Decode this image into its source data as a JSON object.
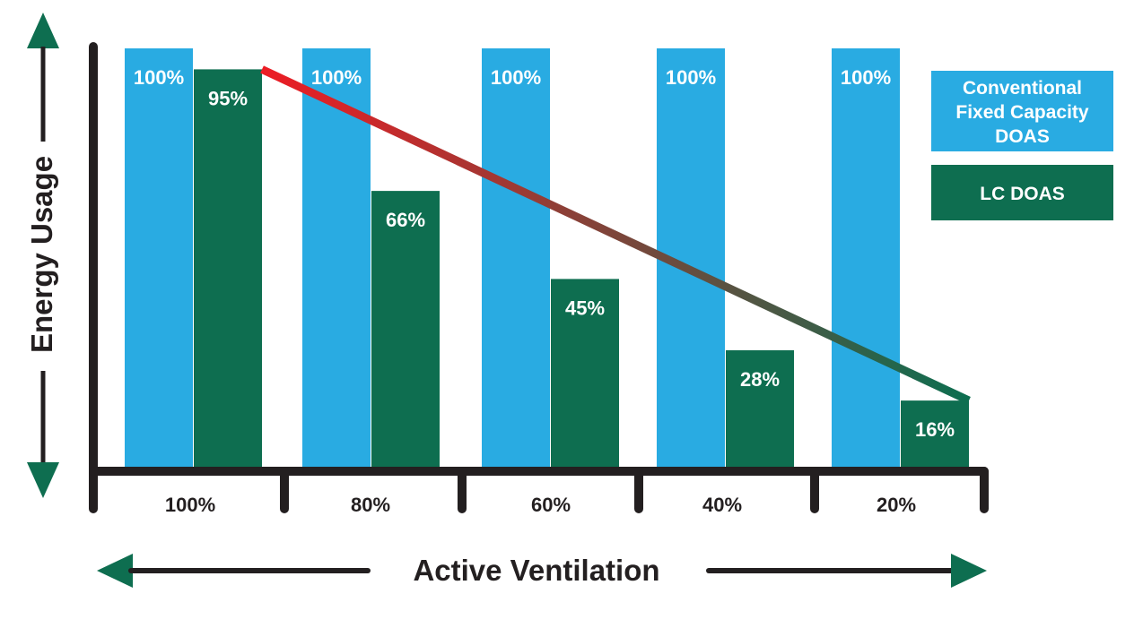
{
  "colors": {
    "conventional": "#29abe2",
    "lc": "#0e6e50",
    "axis": "#231f20",
    "arrow": "#0e6e50",
    "trend_start": "#ed1c24",
    "trend_end": "#0e6e50",
    "bar_label": "#ffffff"
  },
  "chart_data": {
    "type": "bar",
    "title": "",
    "ylabel": "Energy Usage",
    "xlabel": "Active Ventilation",
    "ylim": [
      0,
      100
    ],
    "categories": [
      "100%",
      "80%",
      "60%",
      "40%",
      "20%"
    ],
    "series": [
      {
        "name": "Conventional Fixed Capacity DOAS",
        "values": [
          100,
          100,
          100,
          100,
          100
        ],
        "labels": [
          "100%",
          "100%",
          "100%",
          "100%",
          "100%"
        ]
      },
      {
        "name": "LC DOAS",
        "values": [
          95,
          66,
          45,
          28,
          16
        ],
        "labels": [
          "95%",
          "66%",
          "45%",
          "28%",
          "16%"
        ]
      }
    ],
    "trend_line": "LC DOAS",
    "legend": {
      "placement": "top-right",
      "items": [
        {
          "lines": [
            "Conventional",
            "Fixed Capacity",
            "DOAS"
          ],
          "series": 0
        },
        {
          "lines": [
            "LC DOAS"
          ],
          "series": 1
        }
      ]
    },
    "grid": false
  }
}
